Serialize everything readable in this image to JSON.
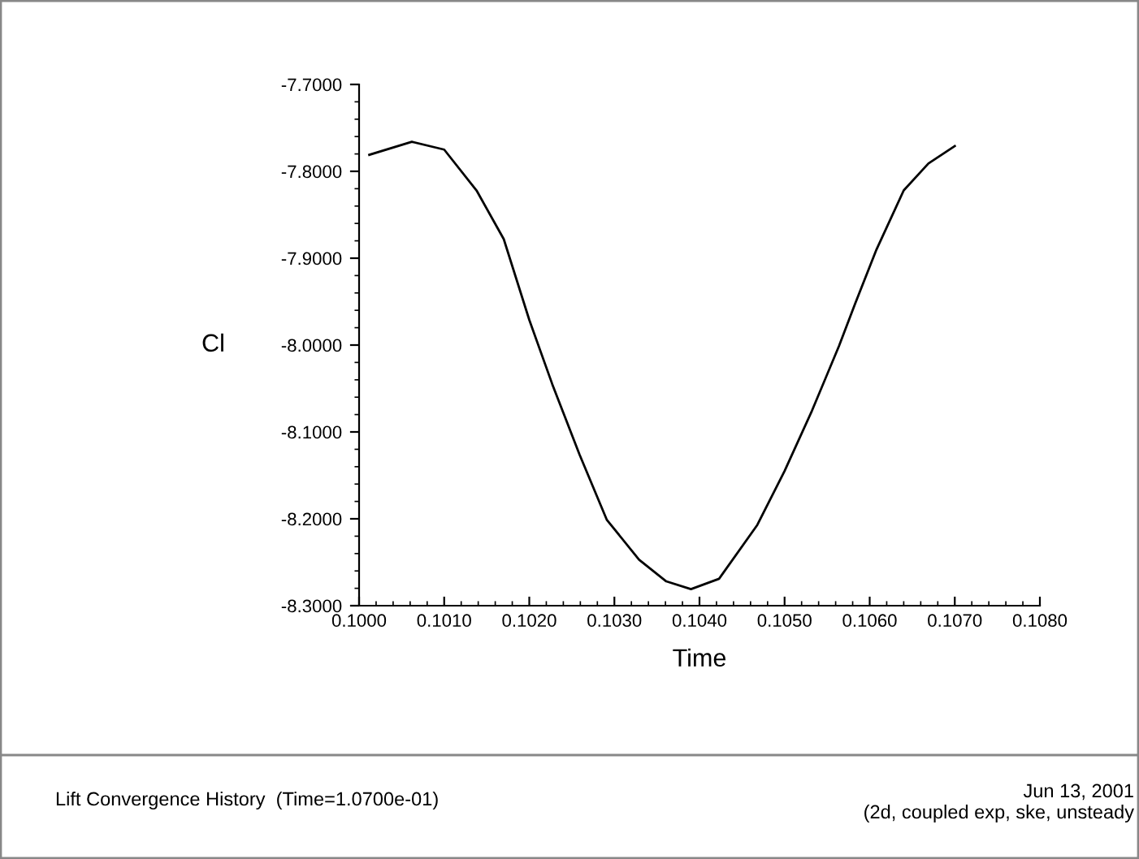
{
  "chart_data": {
    "type": "line",
    "xlabel": "Time",
    "ylabel": "Cl",
    "annotations": [
      "Lift Convergence History  (Time=1.0700e-01)",
      "Jun 13, 2001",
      "(2d, coupled exp, ske, unsteady"
    ],
    "x": [
      0.10012,
      0.10062,
      0.101,
      0.10138,
      0.1017,
      0.102,
      0.10227,
      0.10259,
      0.10291,
      0.10329,
      0.10361,
      0.1039,
      0.10423,
      0.10468,
      0.105,
      0.10532,
      0.10564,
      0.10583,
      0.10608,
      0.1064,
      0.10669,
      0.107
    ],
    "series": [
      {
        "color": "#000000",
        "values": [
          -7.781,
          -7.766,
          -7.775,
          -7.822,
          -7.878,
          -7.971,
          -8.045,
          -8.126,
          -8.201,
          -8.247,
          -8.272,
          -8.281,
          -8.269,
          -8.207,
          -8.145,
          -8.076,
          -8.001,
          -7.952,
          -7.89,
          -7.822,
          -7.791,
          -7.771
        ]
      }
    ],
    "xlim": [
      0.1,
      0.108
    ],
    "ylim": [
      -8.3,
      -7.7
    ],
    "xticks": [
      {
        "value": 0.1,
        "label": "0.1000"
      },
      {
        "value": 0.101,
        "label": "0.1010"
      },
      {
        "value": 0.102,
        "label": "0.1020"
      },
      {
        "value": 0.103,
        "label": "0.1030"
      },
      {
        "value": 0.104,
        "label": "0.1040"
      },
      {
        "value": 0.105,
        "label": "0.1050"
      },
      {
        "value": 0.106,
        "label": "0.1060"
      },
      {
        "value": 0.107,
        "label": "0.1070"
      },
      {
        "value": 0.108,
        "label": "0.1080"
      }
    ],
    "yticks": [
      {
        "value": -8.3,
        "label": "-8.3000"
      },
      {
        "value": -8.2,
        "label": "-8.2000"
      },
      {
        "value": -8.1,
        "label": "-8.1000"
      },
      {
        "value": -8.0,
        "label": "-8.0000"
      },
      {
        "value": -7.9,
        "label": "-7.9000"
      },
      {
        "value": -7.8,
        "label": "-7.8000"
      },
      {
        "value": -7.7,
        "label": "-7.7000"
      }
    ],
    "grid": false,
    "legend": false,
    "marker": "none",
    "line_style": "solid"
  }
}
